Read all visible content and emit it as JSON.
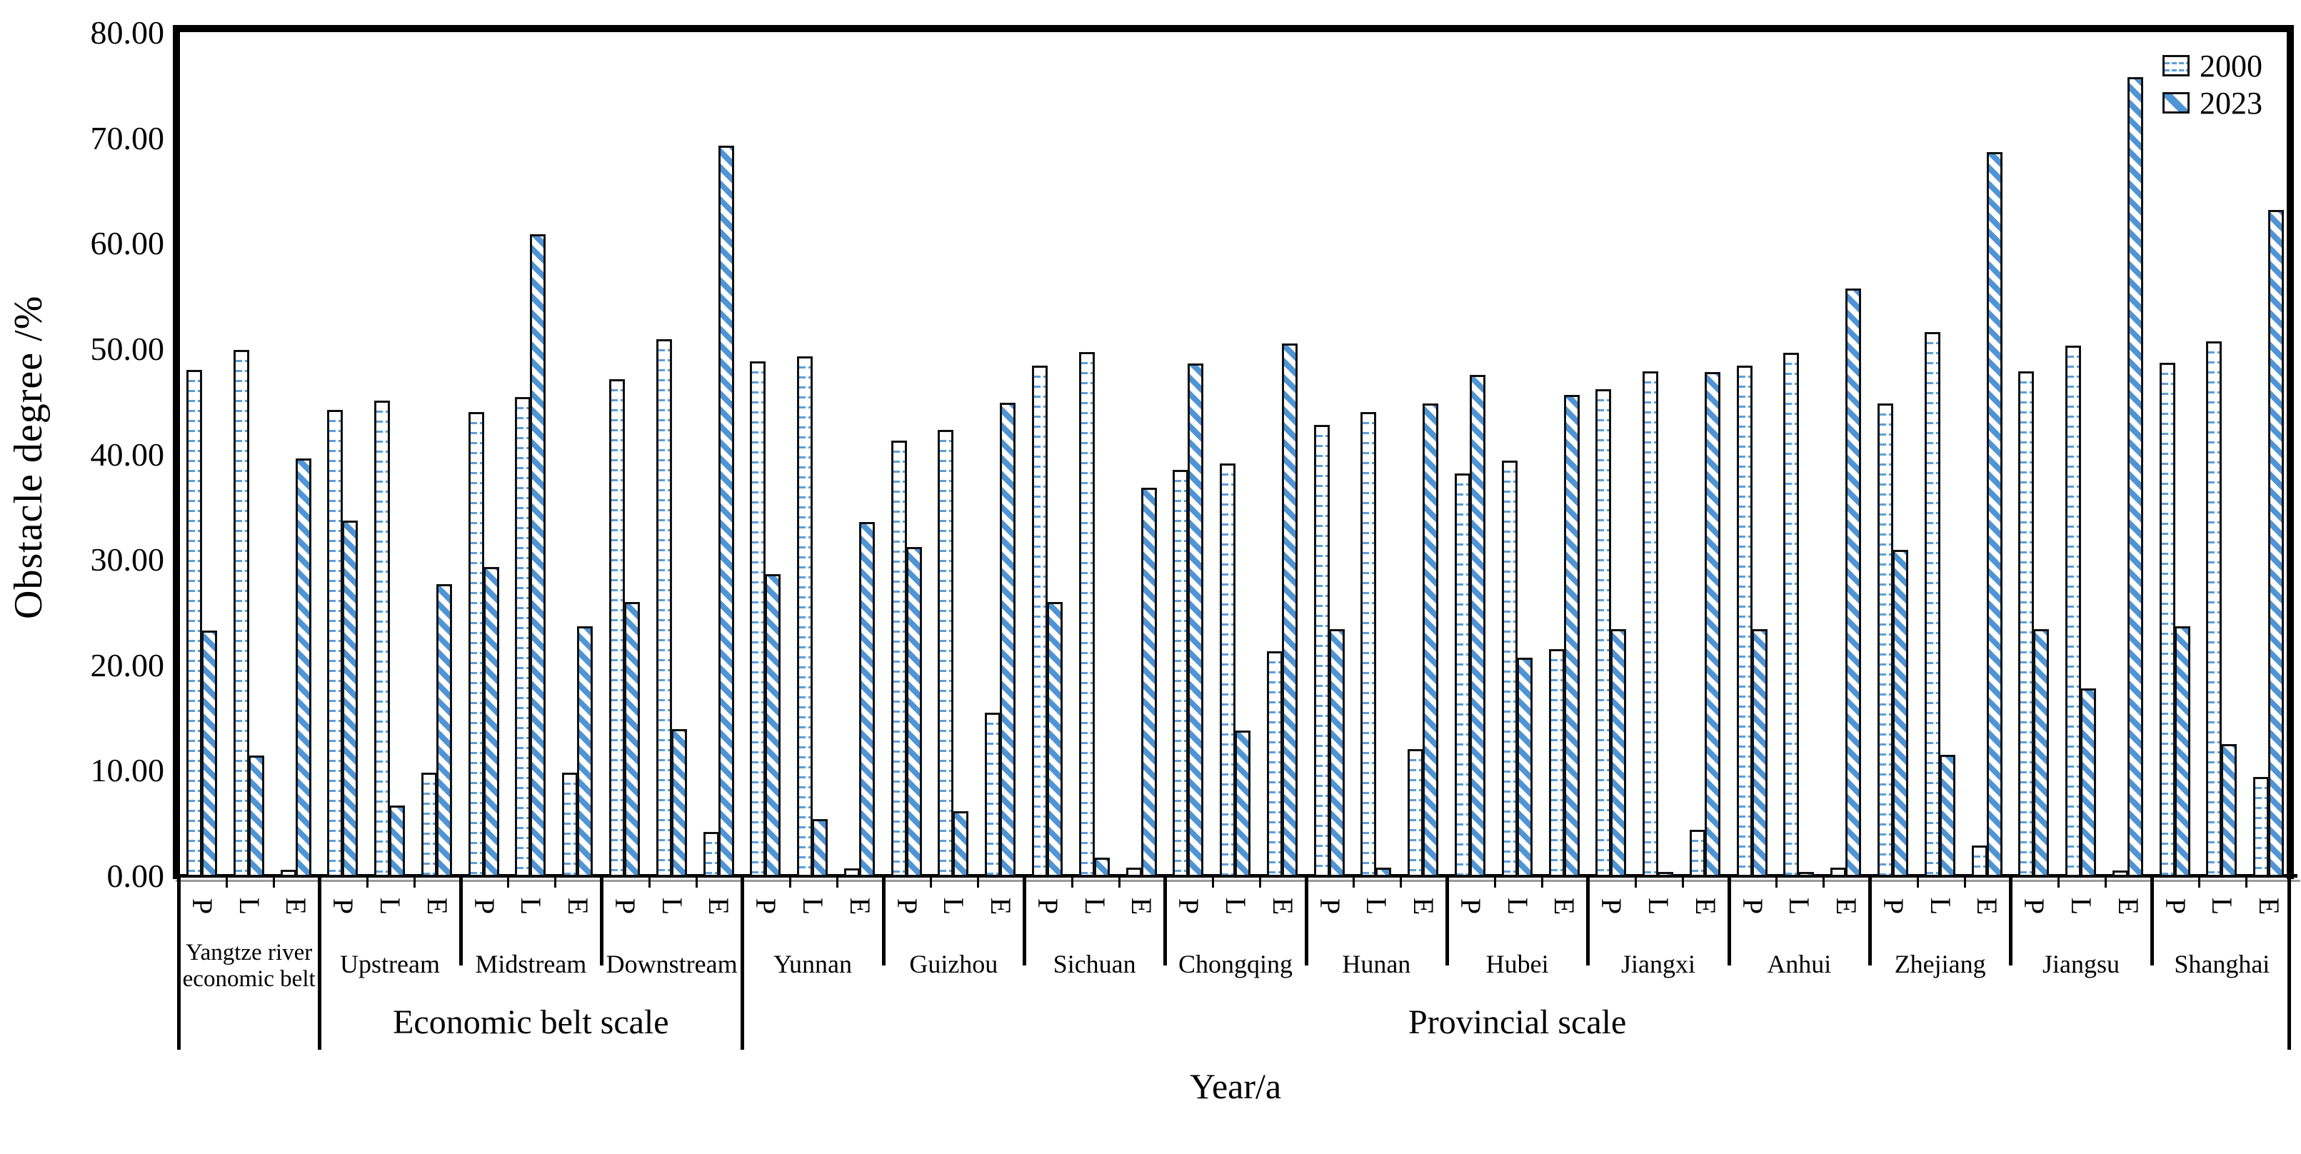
{
  "chart_data": {
    "type": "bar",
    "title": "",
    "ylabel": "Obstacle degree /%",
    "xlabel": "Year/a",
    "ylim": [
      0,
      80
    ],
    "ytick_labels": [
      "0.00",
      "10.00",
      "20.00",
      "30.00",
      "40.00",
      "50.00",
      "60.00",
      "70.00",
      "80.00"
    ],
    "sub_categories": [
      "P",
      "L",
      "E"
    ],
    "series_names": [
      "2000",
      "2023"
    ],
    "legend_position": "top-right",
    "grid": false,
    "groups": [
      {
        "label": "Yangtze river economic belt",
        "values_2000": [
          48.1,
          50.0,
          0.7
        ],
        "values_2023": [
          23.4,
          11.5,
          39.7
        ]
      },
      {
        "label": "Upstream",
        "values_2000": [
          44.3,
          45.2,
          9.9
        ],
        "values_2023": [
          33.8,
          6.8,
          27.8
        ]
      },
      {
        "label": "Midstream",
        "values_2000": [
          44.1,
          45.5,
          9.9
        ],
        "values_2023": [
          29.4,
          61.0,
          23.8
        ]
      },
      {
        "label": "Downstream",
        "values_2000": [
          47.2,
          51.0,
          4.3
        ],
        "values_2023": [
          26.1,
          14.0,
          69.4
        ]
      },
      {
        "label": "Yunnan",
        "values_2000": [
          48.9,
          49.4,
          0.8
        ],
        "values_2023": [
          28.7,
          5.5,
          33.7
        ]
      },
      {
        "label": "Guizhou",
        "values_2000": [
          41.4,
          42.4,
          15.6
        ],
        "values_2023": [
          31.3,
          6.2,
          45.0
        ]
      },
      {
        "label": "Sichuan",
        "values_2000": [
          48.5,
          49.8,
          0.9
        ],
        "values_2023": [
          26.1,
          1.8,
          36.9
        ]
      },
      {
        "label": "Chongqing",
        "values_2000": [
          38.6,
          39.2,
          21.4
        ],
        "values_2023": [
          48.7,
          13.9,
          50.6
        ]
      },
      {
        "label": "Hunan",
        "values_2000": [
          42.9,
          44.1,
          12.1
        ],
        "values_2023": [
          23.5,
          0.9,
          44.9
        ]
      },
      {
        "label": "Hubei",
        "values_2000": [
          38.3,
          39.5,
          21.6
        ],
        "values_2023": [
          47.6,
          20.8,
          45.7
        ]
      },
      {
        "label": "Jiangxi",
        "values_2000": [
          46.3,
          48.0,
          4.5
        ],
        "values_2023": [
          23.5,
          0.5,
          47.9
        ]
      },
      {
        "label": "Anhui",
        "values_2000": [
          48.5,
          49.7,
          0.9
        ],
        "values_2023": [
          23.5,
          0.5,
          55.8
        ]
      },
      {
        "label": "Zhejiang",
        "values_2000": [
          44.9,
          51.7,
          3.0
        ],
        "values_2023": [
          31.0,
          11.6,
          68.8
        ]
      },
      {
        "label": "Jiangsu",
        "values_2000": [
          48.0,
          50.4,
          0.6
        ],
        "values_2023": [
          23.5,
          17.9,
          75.9
        ]
      },
      {
        "label": "Shanghai",
        "values_2000": [
          48.8,
          50.8,
          9.5
        ],
        "values_2023": [
          23.8,
          12.6,
          63.3
        ]
      }
    ],
    "sections": [
      {
        "label": "Economic belt scale",
        "from_group": 1,
        "to_group": 3
      },
      {
        "label": "Provincial scale",
        "from_group": 4,
        "to_group": 14
      }
    ],
    "colors": {
      "pattern_blue": "#4f94d4",
      "pattern_blue_light": "#5b9fda",
      "bar_border": "#111111",
      "axis": "#000000"
    }
  }
}
